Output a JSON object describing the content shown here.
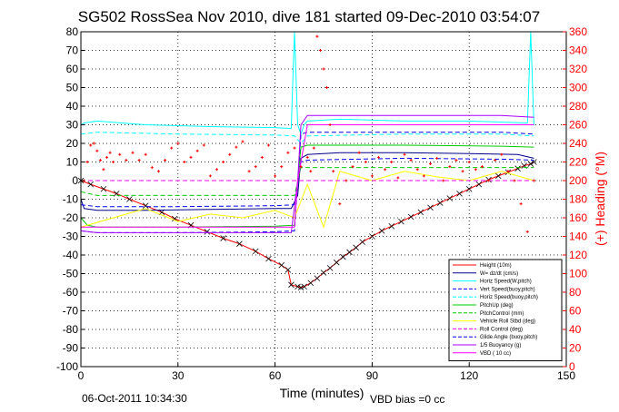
{
  "footer": {
    "timestamp": "06-Oct-2011 10:34:30",
    "vbd_bias": "VBD bias =0 cc"
  },
  "chart_data": {
    "type": "line",
    "title": "SG502 RossSea Nov 2010, dive 181 started 09-Dec-2010 03:54:07",
    "xlabel": "Time (minutes)",
    "ylabel_left": "",
    "ylabel_right": "(+) Heading (°M)",
    "xlim": [
      0,
      150
    ],
    "ylim": [
      -100,
      80
    ],
    "ylim_right": [
      0,
      360
    ],
    "x_ticks": [
      0,
      30,
      60,
      90,
      120,
      150
    ],
    "y_ticks": [
      -100,
      -90,
      -80,
      -70,
      -60,
      -50,
      -40,
      -30,
      -20,
      -10,
      0,
      10,
      20,
      30,
      40,
      50,
      60,
      70,
      80
    ],
    "y2_ticks": [
      0,
      20,
      40,
      60,
      80,
      100,
      120,
      140,
      160,
      180,
      200,
      220,
      240,
      260,
      280,
      300,
      320,
      340,
      360
    ],
    "grid": true,
    "legend_position": "bottom-right",
    "colors": {
      "height": "#ff0000",
      "w": "#00008b",
      "horz_speed": "#00ffff",
      "vert_speed_buoy": "#0000ff",
      "horz_speed_buoy": "#00ffff",
      "pitch_up": "#00cc00",
      "pitch_control": "#00cc00",
      "roll": "#ffff00",
      "roll_control": "#ff00ff",
      "glide_angle": "#0000ff",
      "buoyancy": "#aa00ff",
      "vbd": "#ff00ff",
      "heading": "#ff0000",
      "right_axis": "#ff0000"
    },
    "series": [
      {
        "name": "Height (10m)",
        "style": "line-markers",
        "x": [
          0,
          3,
          7,
          11,
          15,
          20,
          25,
          29,
          34,
          39,
          44,
          49,
          54,
          58,
          62,
          64,
          65,
          67,
          68,
          69,
          71,
          73,
          75,
          77,
          79,
          81,
          83,
          85,
          87,
          90,
          93,
          96,
          99,
          102,
          105,
          108,
          111,
          114,
          117,
          120,
          123,
          126,
          129,
          132,
          135,
          137,
          139,
          140
        ],
        "values": [
          0,
          -2,
          -4.5,
          -7,
          -10,
          -13.5,
          -17,
          -20.5,
          -24,
          -27.5,
          -31,
          -34,
          -38,
          -42,
          -45.5,
          -48,
          -56,
          -57,
          -57.5,
          -57,
          -55,
          -52.5,
          -49.5,
          -47,
          -44,
          -41,
          -38.5,
          -36,
          -33,
          -30,
          -27,
          -24.5,
          -22,
          -19.5,
          -17,
          -14.5,
          -12,
          -9.5,
          -7,
          -4.5,
          -2,
          0.5,
          2.5,
          4.5,
          6.5,
          8,
          9,
          10
        ]
      },
      {
        "name": "W= dz/dt (cm/s)",
        "style": "line",
        "x": [
          0,
          1,
          5,
          20,
          40,
          60,
          65,
          67,
          68,
          70,
          80,
          100,
          120,
          135,
          140
        ],
        "values": [
          -10,
          -15,
          -16,
          -16,
          -15.5,
          -15,
          -15,
          -8,
          12,
          14,
          15,
          15,
          14.5,
          14,
          12
        ]
      },
      {
        "name": "Horiz Speed(W,pitch)",
        "style": "line",
        "x": [
          0,
          1,
          5,
          20,
          40,
          60,
          65,
          66,
          67,
          68,
          69,
          70,
          80,
          100,
          120,
          138,
          139,
          140
        ],
        "values": [
          30,
          31,
          32,
          30,
          29,
          28.5,
          28,
          80,
          30,
          25,
          30,
          32,
          33,
          32,
          32,
          31,
          80,
          30
        ]
      },
      {
        "name": "Vert Speed(buoy,pitch)",
        "style": "dash",
        "x": [
          0,
          5,
          30,
          60,
          66,
          68,
          70,
          100,
          130,
          140
        ],
        "values": [
          -13,
          -14,
          -14,
          -13.5,
          -13,
          10,
          11,
          12,
          11.5,
          11
        ]
      },
      {
        "name": "Horiz Speed(buoy,pitch)",
        "style": "dash",
        "x": [
          0,
          5,
          30,
          60,
          66,
          68,
          70,
          100,
          130,
          140
        ],
        "values": [
          25,
          26,
          25,
          24.5,
          24,
          20,
          24,
          25,
          25,
          24
        ]
      },
      {
        "name": "PitchUp (deg)",
        "style": "line",
        "x": [
          0,
          2,
          5,
          30,
          60,
          66,
          67,
          68,
          70,
          100,
          130,
          140
        ],
        "values": [
          -20,
          -24,
          -25,
          -25,
          -24.5,
          -24,
          0,
          18,
          19,
          19,
          18.5,
          18
        ]
      },
      {
        "name": "PitchControl (mm)",
        "style": "dash",
        "x": [
          0,
          5,
          30,
          60,
          66,
          68,
          70,
          100,
          130,
          140
        ],
        "values": [
          -6,
          -8,
          -8,
          -8,
          -8,
          7,
          7,
          7,
          7,
          7
        ]
      },
      {
        "name": "Vehicle Roll Stbd (deg)",
        "style": "line",
        "x": [
          0,
          10,
          20,
          30,
          40,
          50,
          60,
          66,
          70,
          75,
          80,
          90,
          100,
          110,
          120,
          130,
          140
        ],
        "values": [
          -25,
          -20,
          -15,
          -22,
          -18,
          -20,
          -16,
          -20,
          -2,
          -25,
          5,
          0,
          5,
          2,
          0,
          5,
          0
        ]
      },
      {
        "name": "Roll Control (deg)",
        "style": "dash",
        "x": [
          0,
          30,
          60,
          66,
          68,
          100,
          140
        ],
        "values": [
          0,
          0,
          0,
          0,
          0,
          0,
          0
        ]
      },
      {
        "name": "Glide Angle (buoy,pitch)",
        "style": "dash",
        "x": [
          0,
          5,
          30,
          60,
          66,
          68,
          70,
          100,
          130,
          140
        ],
        "values": [
          -27,
          -28,
          -28,
          -27.5,
          -27,
          25,
          26,
          26,
          26,
          25
        ]
      },
      {
        "name": "1/5 Buoyancy (g)",
        "style": "line",
        "x": [
          0,
          5,
          30,
          60,
          65,
          67,
          68,
          70,
          100,
          130,
          140
        ],
        "values": [
          -27,
          -28,
          -28,
          -28,
          -28,
          0,
          30,
          35,
          35,
          35,
          34
        ]
      },
      {
        "name": "VBD ( 10 cc)",
        "style": "line",
        "x": [
          0,
          5,
          30,
          60,
          66,
          67,
          70,
          100,
          130,
          140
        ],
        "values": [
          -25,
          -25,
          -25,
          -25,
          -25,
          0,
          30,
          30,
          30,
          30
        ]
      },
      {
        "name": "Heading",
        "style": "markers",
        "axis": "right",
        "x": [
          1,
          2,
          3,
          4,
          5,
          6,
          7,
          8,
          9,
          10,
          12,
          14,
          16,
          18,
          20,
          22,
          24,
          26,
          28,
          30,
          32,
          34,
          36,
          38,
          40,
          42,
          44,
          46,
          48,
          50,
          52,
          54,
          56,
          58,
          60,
          62,
          64,
          66,
          68,
          70,
          71,
          72,
          73,
          74,
          75,
          76,
          77,
          78,
          80,
          82,
          84,
          86,
          88,
          90,
          92,
          94,
          96,
          98,
          100,
          102,
          104,
          106,
          108,
          110,
          112,
          114,
          116,
          118,
          120,
          122,
          124,
          126,
          128,
          130,
          132,
          134,
          136,
          138,
          140
        ],
        "values": [
          200,
          220,
          238,
          240,
          232,
          222,
          212,
          225,
          230,
          220,
          228,
          222,
          230,
          222,
          228,
          214,
          210,
          222,
          235,
          240,
          220,
          225,
          232,
          238,
          205,
          212,
          220,
          228,
          236,
          242,
          210,
          215,
          225,
          238,
          205,
          215,
          230,
          235,
          215,
          225,
          210,
          235,
          355,
          340,
          320,
          300,
          260,
          210,
          175,
          200,
          215,
          230,
          220,
          205,
          225,
          212,
          220,
          203,
          228,
          222,
          212,
          205,
          218,
          224,
          200,
          215,
          222,
          210,
          220,
          212,
          215,
          200,
          222,
          228,
          210,
          200,
          175,
          145,
          200
        ]
      }
    ]
  }
}
